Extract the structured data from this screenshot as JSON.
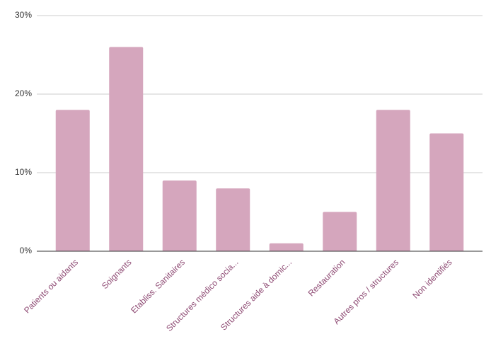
{
  "chart_data": {
    "type": "bar",
    "categories": [
      "Patients ou aidants",
      "Soignants",
      "Etabliss. Sanitaires",
      "Structures médico socia...",
      "Structures aide à domic...",
      "Restauration",
      "Autres pros / structures",
      "Non identifiés"
    ],
    "values": [
      18,
      26,
      9,
      8,
      1,
      5,
      18,
      15
    ],
    "color": "#d5a6bd",
    "ylim": [
      0,
      30
    ],
    "yticks": [
      {
        "value": 0,
        "label": "0%"
      },
      {
        "value": 10,
        "label": "10%"
      },
      {
        "value": 20,
        "label": "20%"
      },
      {
        "value": 30,
        "label": "30%"
      }
    ],
    "grid": true
  }
}
